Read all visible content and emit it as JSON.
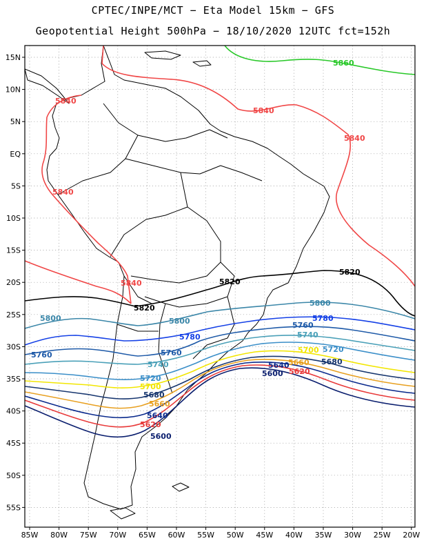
{
  "header": {
    "title_line1": "CPTEC/INPE/MCT −  Eta Model 15km − GFS",
    "title_line2": "Geopotential Height 500hPa − 18/10/2020 12UTC fct=152h"
  },
  "axes": {
    "lon_labels": [
      "85W",
      "80W",
      "75W",
      "70W",
      "65W",
      "60W",
      "55W",
      "50W",
      "45W",
      "40W",
      "35W",
      "30W",
      "25W",
      "20W"
    ],
    "lat_labels": [
      "15N",
      "10N",
      "5N",
      "EQ",
      "5S",
      "10S",
      "15S",
      "20S",
      "25S",
      "30S",
      "35S",
      "40S",
      "45S",
      "50S",
      "55S"
    ]
  },
  "contour_colors": {
    "5600": "#0a1e6e",
    "5620": "#e83a3a",
    "5640": "#0a2a8c",
    "5660": "#e8a020",
    "5680": "#16356e",
    "5700": "#f2e600",
    "5720": "#3a8ec8",
    "5740": "#4aa0b8",
    "5760": "#1e5aa8",
    "5780": "#1440e6",
    "5800": "#3a86a8",
    "5820": "#000000",
    "5840": "#f04646",
    "5860": "#28c828"
  },
  "contour_labels": [
    {
      "id": "5860-a",
      "text": "5860",
      "level": "5860"
    },
    {
      "id": "5840-a",
      "text": "5840",
      "level": "5840"
    },
    {
      "id": "5840-b",
      "text": "5840",
      "level": "5840"
    },
    {
      "id": "5840-c",
      "text": "5840",
      "level": "5840"
    },
    {
      "id": "5840-d",
      "text": "5840",
      "level": "5840"
    },
    {
      "id": "5840-e",
      "text": "5840",
      "level": "5840"
    },
    {
      "id": "5820-a",
      "text": "5820",
      "level": "5820"
    },
    {
      "id": "5820-b",
      "text": "5820",
      "level": "5820"
    },
    {
      "id": "5820-c",
      "text": "5820",
      "level": "5820"
    },
    {
      "id": "5800-a",
      "text": "5800",
      "level": "5800"
    },
    {
      "id": "5800-b",
      "text": "5800",
      "level": "5800"
    },
    {
      "id": "5800-c",
      "text": "5800",
      "level": "5800"
    },
    {
      "id": "5780-a",
      "text": "5780",
      "level": "5780"
    },
    {
      "id": "5780-b",
      "text": "5780",
      "level": "5780"
    },
    {
      "id": "5760-a",
      "text": "5760",
      "level": "5760"
    },
    {
      "id": "5760-b",
      "text": "5760",
      "level": "5760"
    },
    {
      "id": "5760-c",
      "text": "5760",
      "level": "5760"
    },
    {
      "id": "5740-a",
      "text": "5740",
      "level": "5740"
    },
    {
      "id": "5740-b",
      "text": "5740",
      "level": "5740"
    },
    {
      "id": "5720-a",
      "text": "5720",
      "level": "5720"
    },
    {
      "id": "5720-b",
      "text": "5720",
      "level": "5720"
    },
    {
      "id": "5700-a",
      "text": "5700",
      "level": "5700"
    },
    {
      "id": "5700-b",
      "text": "5700",
      "level": "5700"
    },
    {
      "id": "5680-a",
      "text": "5680",
      "level": "5680"
    },
    {
      "id": "5680-b",
      "text": "5680",
      "level": "5680"
    },
    {
      "id": "5660-a",
      "text": "5660",
      "level": "5660"
    },
    {
      "id": "5660-b",
      "text": "5660",
      "level": "5660"
    },
    {
      "id": "5640-a",
      "text": "5640",
      "level": "5640"
    },
    {
      "id": "5640-b",
      "text": "5640",
      "level": "5640"
    },
    {
      "id": "5620-a",
      "text": "5620",
      "level": "5620"
    },
    {
      "id": "5620-b",
      "text": "5620",
      "level": "5620"
    },
    {
      "id": "5600-a",
      "text": "5600",
      "level": "5600"
    },
    {
      "id": "5600-b",
      "text": "5600",
      "level": "5600"
    }
  ]
}
